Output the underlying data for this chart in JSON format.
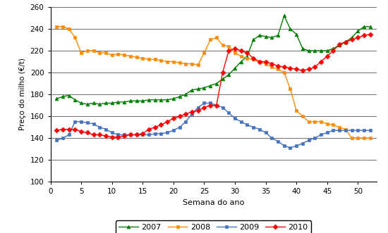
{
  "xlabel": "Semana do ano",
  "ylabel": "Preço do milho (€/t)",
  "xlim": [
    0,
    53
  ],
  "ylim": [
    100,
    260
  ],
  "yticks": [
    100,
    120,
    140,
    160,
    180,
    200,
    220,
    240,
    260
  ],
  "xticks": [
    0,
    5,
    10,
    15,
    20,
    25,
    30,
    35,
    40,
    45,
    50
  ],
  "series": {
    "2007": {
      "color": "#008000",
      "marker": "^",
      "x": [
        1,
        2,
        3,
        4,
        5,
        6,
        7,
        8,
        9,
        10,
        11,
        12,
        13,
        14,
        15,
        16,
        17,
        18,
        19,
        20,
        21,
        22,
        23,
        24,
        25,
        26,
        27,
        28,
        29,
        30,
        31,
        32,
        33,
        34,
        35,
        36,
        37,
        38,
        39,
        40,
        41,
        42,
        43,
        44,
        45,
        46,
        47,
        48,
        49,
        50,
        51,
        52
      ],
      "y": [
        176,
        178,
        179,
        175,
        172,
        171,
        172,
        171,
        172,
        172,
        173,
        173,
        174,
        174,
        174,
        175,
        175,
        175,
        175,
        176,
        178,
        180,
        184,
        185,
        186,
        188,
        190,
        194,
        198,
        204,
        210,
        215,
        230,
        234,
        233,
        232,
        234,
        252,
        240,
        235,
        222,
        220,
        220,
        220,
        220,
        222,
        225,
        228,
        232,
        238,
        242,
        242
      ]
    },
    "2008": {
      "color": "#FF8C00",
      "marker": "s",
      "x": [
        1,
        2,
        3,
        4,
        5,
        6,
        7,
        8,
        9,
        10,
        11,
        12,
        13,
        14,
        15,
        16,
        17,
        18,
        19,
        20,
        21,
        22,
        23,
        24,
        25,
        26,
        27,
        28,
        29,
        30,
        31,
        32,
        33,
        34,
        35,
        36,
        37,
        38,
        39,
        40,
        41,
        42,
        43,
        44,
        45,
        46,
        47,
        48,
        49,
        50,
        51,
        52
      ],
      "y": [
        242,
        242,
        240,
        232,
        218,
        220,
        220,
        218,
        218,
        216,
        217,
        216,
        215,
        214,
        213,
        212,
        212,
        211,
        210,
        210,
        209,
        208,
        208,
        207,
        218,
        230,
        232,
        225,
        224,
        218,
        215,
        213,
        212,
        210,
        208,
        205,
        203,
        200,
        185,
        165,
        160,
        155,
        155,
        155,
        153,
        152,
        150,
        148,
        140,
        140,
        140,
        140
      ]
    },
    "2009": {
      "color": "#4472C4",
      "marker": "s",
      "x": [
        1,
        2,
        3,
        4,
        5,
        6,
        7,
        8,
        9,
        10,
        11,
        12,
        13,
        14,
        15,
        16,
        17,
        18,
        19,
        20,
        21,
        22,
        23,
        24,
        25,
        26,
        27,
        28,
        29,
        30,
        31,
        32,
        33,
        34,
        35,
        36,
        37,
        38,
        39,
        40,
        41,
        42,
        43,
        44,
        45,
        46,
        47,
        48,
        49,
        50,
        51,
        52
      ],
      "y": [
        138,
        140,
        143,
        155,
        155,
        154,
        153,
        150,
        148,
        145,
        143,
        143,
        143,
        143,
        143,
        143,
        144,
        144,
        145,
        147,
        150,
        155,
        162,
        168,
        172,
        172,
        170,
        168,
        163,
        158,
        155,
        152,
        150,
        148,
        145,
        140,
        137,
        133,
        131,
        133,
        135,
        138,
        140,
        143,
        145,
        147,
        147,
        147,
        147,
        147,
        147,
        147
      ]
    },
    "2010": {
      "color": "#FF0000",
      "marker": "D",
      "x": [
        1,
        2,
        3,
        4,
        5,
        6,
        7,
        8,
        9,
        10,
        11,
        12,
        13,
        14,
        15,
        16,
        17,
        18,
        19,
        20,
        21,
        22,
        23,
        24,
        25,
        26,
        27,
        28,
        29,
        30,
        31,
        32,
        33,
        34,
        35,
        36,
        37,
        38,
        39,
        40,
        41,
        42,
        43,
        44,
        45,
        46,
        47,
        48,
        49,
        50,
        51,
        52
      ],
      "y": [
        147,
        148,
        148,
        148,
        146,
        145,
        143,
        143,
        142,
        141,
        141,
        142,
        143,
        143,
        144,
        148,
        150,
        152,
        155,
        158,
        160,
        162,
        164,
        165,
        168,
        170,
        170,
        200,
        220,
        222,
        220,
        218,
        213,
        210,
        210,
        208,
        206,
        205,
        204,
        203,
        202,
        203,
        205,
        210,
        215,
        220,
        226,
        228,
        230,
        232,
        234,
        235
      ]
    }
  }
}
